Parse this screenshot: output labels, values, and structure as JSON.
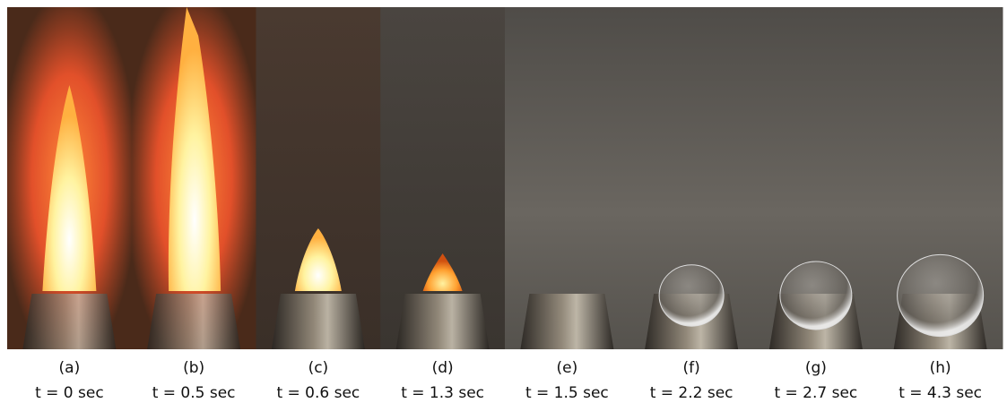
{
  "panels": [
    {
      "label": "(a)",
      "time": "t = 0 sec"
    },
    {
      "label": "(b)",
      "time": "t = 0.5 sec"
    },
    {
      "label": "(c)",
      "time": "t = 0.6 sec"
    },
    {
      "label": "(d)",
      "time": "t = 1.3 sec"
    },
    {
      "label": "(e)",
      "time": "t = 1.5 sec"
    },
    {
      "label": "(f)",
      "time": "t = 2.2 sec"
    },
    {
      "label": "(g)",
      "time": "t = 2.7 sec"
    },
    {
      "label": "(h)",
      "time": "t = 4.3 sec"
    }
  ]
}
